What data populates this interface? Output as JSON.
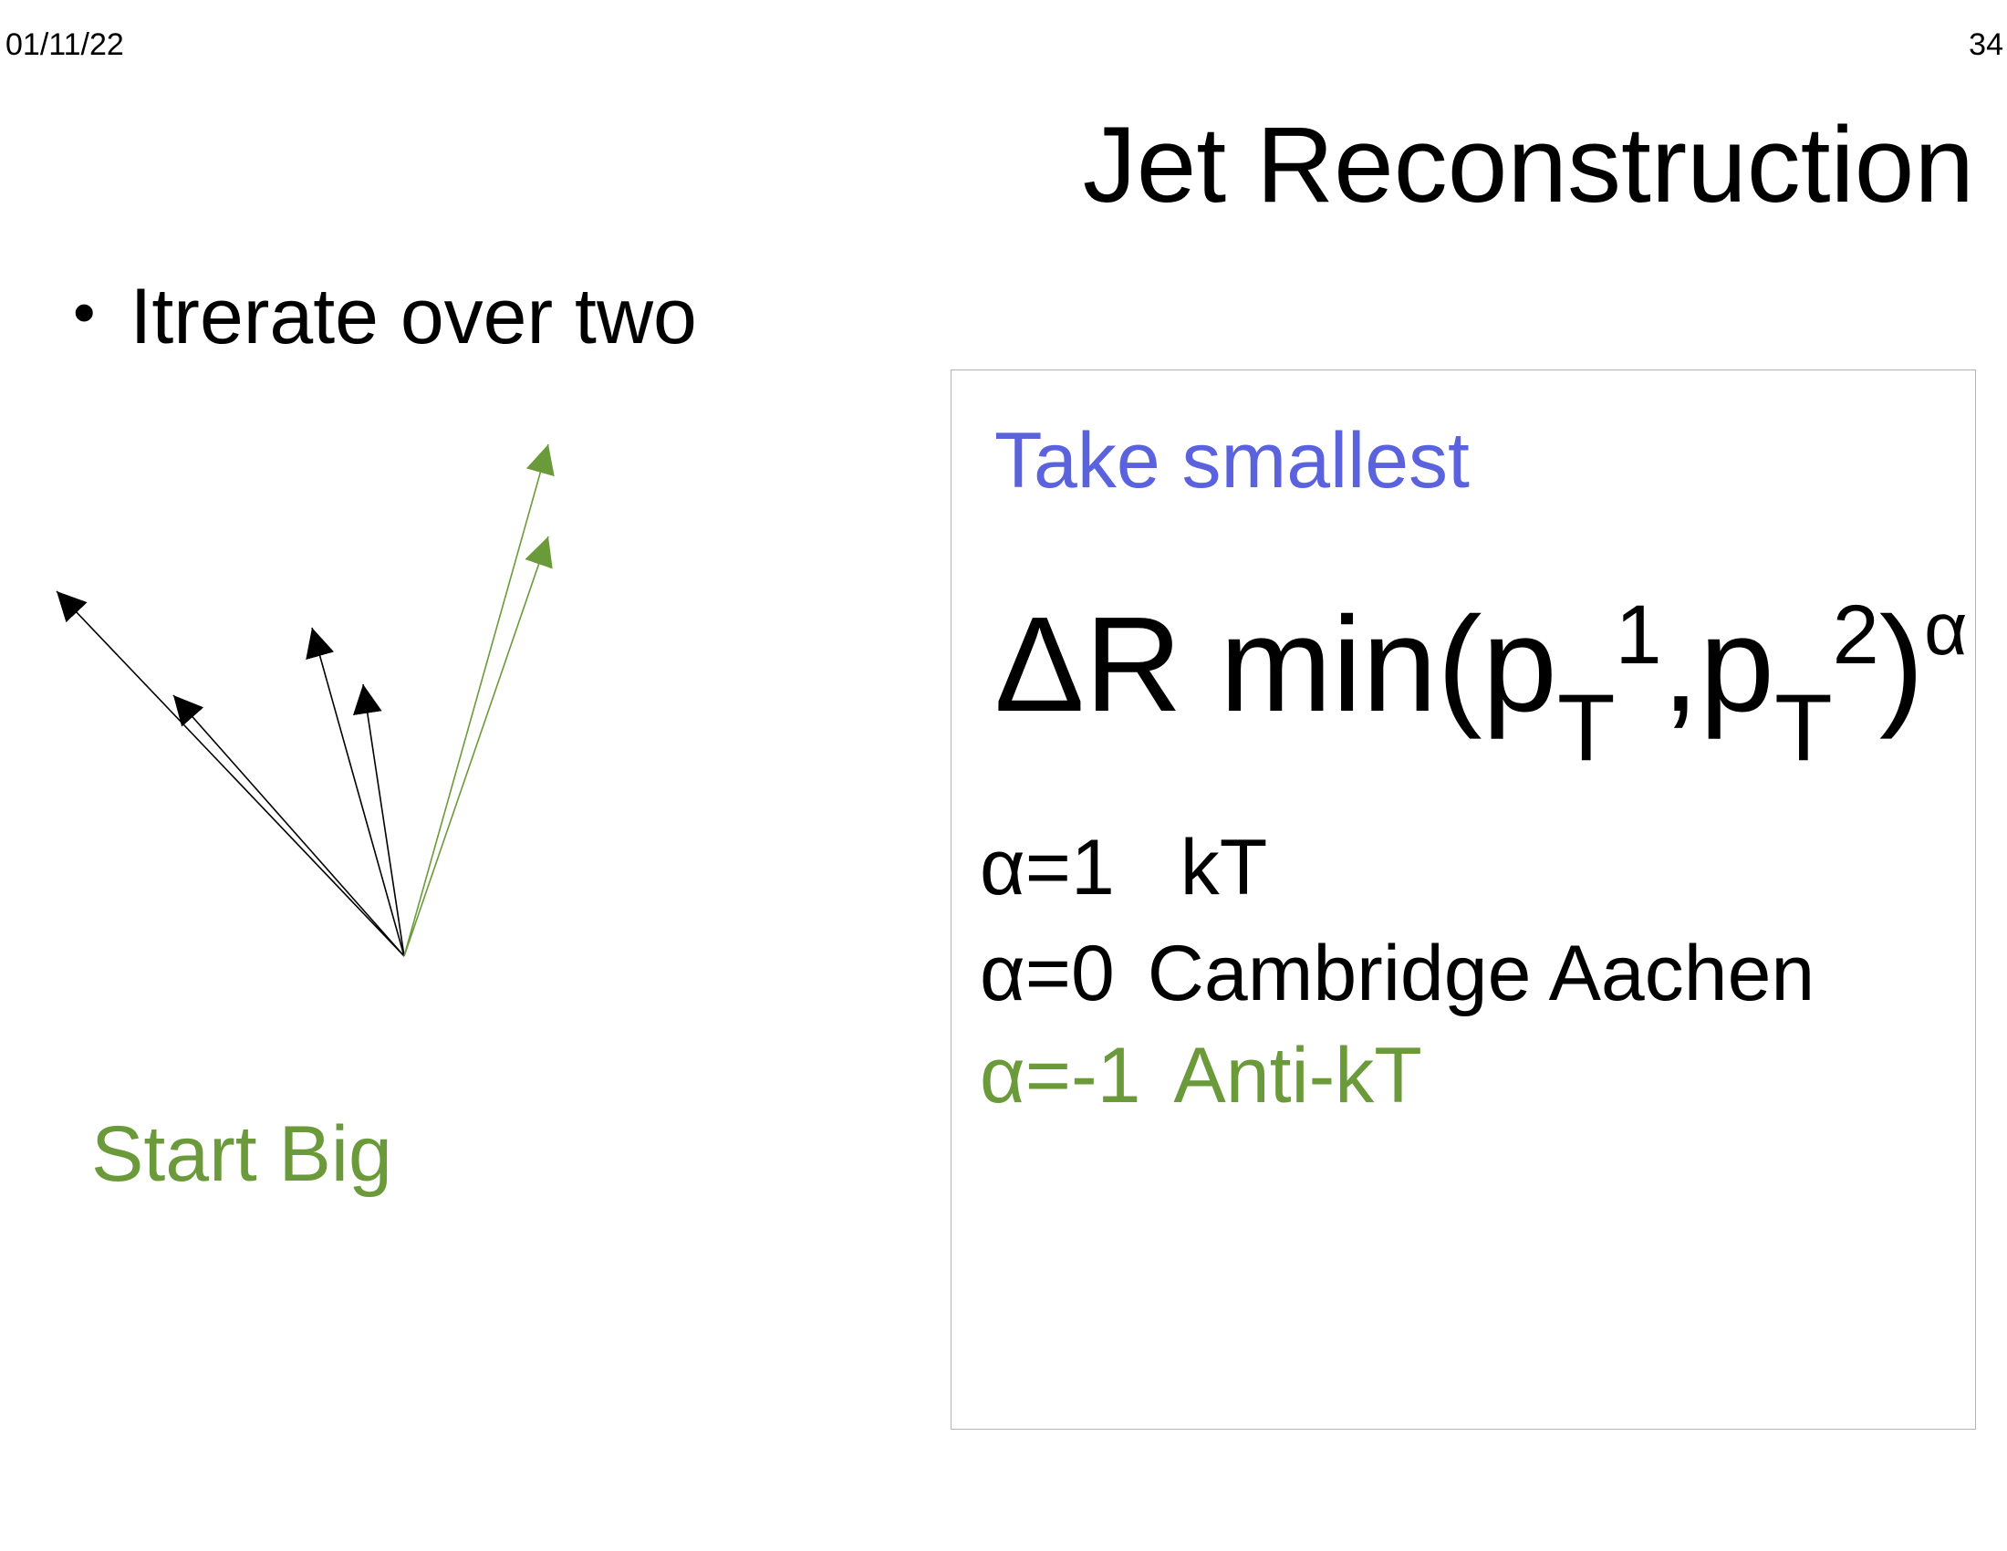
{
  "header": {
    "date": "01/11/22",
    "page_number": "34"
  },
  "title": "Jet Reconstruction",
  "bullet": {
    "symbol": "•",
    "text": "Itrerate over two"
  },
  "diagram": {
    "caption": "Start Big",
    "colors": {
      "black_arrows": "#000000",
      "green_arrows": "#6a9a3a"
    },
    "arrows": [
      {
        "name": "black-arrow-1",
        "color_key": "black_arrows"
      },
      {
        "name": "black-arrow-2",
        "color_key": "black_arrows"
      },
      {
        "name": "black-arrow-3",
        "color_key": "black_arrows"
      },
      {
        "name": "black-arrow-4",
        "color_key": "black_arrows"
      },
      {
        "name": "green-arrow-1",
        "color_key": "green_arrows"
      },
      {
        "name": "green-arrow-2",
        "color_key": "green_arrows"
      }
    ]
  },
  "panel": {
    "heading": "Take smallest",
    "heading_color": "#5a63dd",
    "formula": {
      "main": "ΔR min(p",
      "sub1": "T",
      "sup1": "1",
      "comma": ",p",
      "sub2": "T",
      "sup2": "2",
      "close": ")",
      "exponent": "α"
    },
    "algorithms": [
      {
        "param": "α=1",
        "name": "kT"
      },
      {
        "param": "α=0",
        "name": "Cambridge Aachen"
      },
      {
        "param": "α=-1",
        "name": "Anti-kT",
        "color": "#6a9a3a"
      }
    ]
  }
}
